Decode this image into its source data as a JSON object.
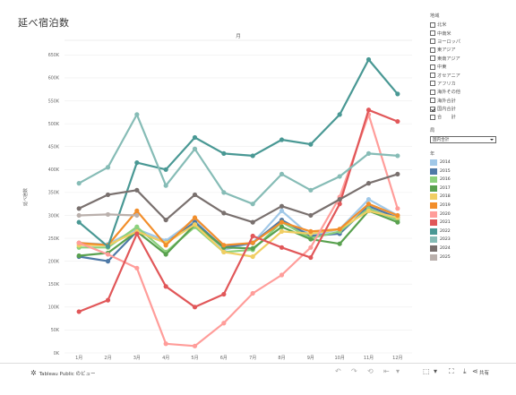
{
  "page": {
    "title": "延べ宿泊数"
  },
  "filters": {
    "region_header": "地域",
    "regions": [
      {
        "label": "北米",
        "checked": false
      },
      {
        "label": "中南米",
        "checked": false
      },
      {
        "label": "ヨーロッパ",
        "checked": false
      },
      {
        "label": "東アジア",
        "checked": false
      },
      {
        "label": "東南アジア",
        "checked": false
      },
      {
        "label": "中東",
        "checked": false
      },
      {
        "label": "オセアニア",
        "checked": false
      },
      {
        "label": "アフリカ",
        "checked": false
      },
      {
        "label": "海外その他",
        "checked": false
      },
      {
        "label": "海外合計",
        "checked": false
      },
      {
        "label": "国内合計",
        "checked": true
      },
      {
        "label": "合　　計",
        "checked": false
      }
    ],
    "type_header": "局",
    "type_value": "国内合計",
    "year_header": "年"
  },
  "toolbar": {
    "brand": "Tableau Public のビュー",
    "share": "共有"
  },
  "chart_data": {
    "type": "line",
    "title": "",
    "top_label": "月",
    "ylabel": "延べ宿数",
    "xlabel": "",
    "categories": [
      "1月",
      "2月",
      "3月",
      "4月",
      "5月",
      "6月",
      "7月",
      "8月",
      "9月",
      "10月",
      "11月",
      "12月"
    ],
    "y_ticks": [
      "0K",
      "50K",
      "100K",
      "150K",
      "200K",
      "250K",
      "300K",
      "350K",
      "400K",
      "450K",
      "500K",
      "550K",
      "600K",
      "650K"
    ],
    "ylim": [
      0,
      680000
    ],
    "grid": true,
    "legend_position": "right",
    "series": [
      {
        "name": "2014",
        "color": "#a0c8e8",
        "values": [
          240000,
          237000,
          270000,
          245000,
          290000,
          225000,
          240000,
          310000,
          255000,
          270000,
          335000,
          300000
        ]
      },
      {
        "name": "2015",
        "color": "#4e79a7",
        "values": [
          210000,
          200000,
          265000,
          240000,
          285000,
          230000,
          240000,
          290000,
          255000,
          260000,
          320000,
          295000
        ]
      },
      {
        "name": "2016",
        "color": "#8cd17d",
        "values": [
          230000,
          230000,
          275000,
          220000,
          275000,
          220000,
          225000,
          285000,
          250000,
          265000,
          315000,
          290000
        ]
      },
      {
        "name": "2017",
        "color": "#59a14f",
        "values": [
          212000,
          218000,
          265000,
          215000,
          280000,
          230000,
          228000,
          275000,
          248000,
          238000,
          310000,
          285000
        ]
      },
      {
        "name": "2018",
        "color": "#f1ce63",
        "values": [
          235000,
          235000,
          265000,
          240000,
          280000,
          220000,
          210000,
          265000,
          260000,
          270000,
          310000,
          295000
        ]
      },
      {
        "name": "2019",
        "color": "#f28e2b",
        "values": [
          240000,
          235000,
          310000,
          235000,
          295000,
          235000,
          240000,
          285000,
          265000,
          270000,
          325000,
          300000
        ]
      },
      {
        "name": "2020",
        "color": "#ff9d9a",
        "values": [
          240000,
          215000,
          185000,
          20000,
          15000,
          65000,
          130000,
          170000,
          230000,
          340000,
          520000,
          315000
        ]
      },
      {
        "name": "2021",
        "color": "#e15759",
        "values": [
          90000,
          115000,
          260000,
          145000,
          100000,
          128000,
          255000,
          230000,
          208000,
          325000,
          530000,
          505000
        ]
      },
      {
        "name": "2022",
        "color": "#499894",
        "values": [
          285000,
          232000,
          415000,
          400000,
          470000,
          435000,
          430000,
          465000,
          455000,
          520000,
          640000,
          565000
        ]
      },
      {
        "name": "2023",
        "color": "#86bcb6",
        "values": [
          370000,
          405000,
          520000,
          365000,
          445000,
          350000,
          325000,
          390000,
          355000,
          385000,
          435000,
          430000
        ]
      },
      {
        "name": "2024",
        "color": "#79706e",
        "values": [
          315000,
          345000,
          355000,
          290000,
          345000,
          305000,
          285000,
          320000,
          300000,
          335000,
          370000,
          390000
        ]
      },
      {
        "name": "2025",
        "color": "#bab0ac",
        "values": [
          300000,
          302000,
          300000,
          null,
          null,
          null,
          null,
          null,
          null,
          null,
          null,
          null
        ]
      }
    ]
  }
}
